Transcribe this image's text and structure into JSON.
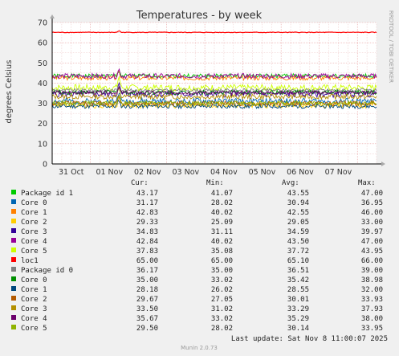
{
  "chart_data": {
    "type": "line",
    "title": "Temperatures - by week",
    "ylabel": "degrees Celsius",
    "ylim": [
      0,
      70
    ],
    "yticks": [
      0,
      10,
      20,
      30,
      40,
      50,
      60,
      70
    ],
    "x_tick_labels": [
      "31 Oct",
      "01 Nov",
      "02 Nov",
      "03 Nov",
      "04 Nov",
      "05 Nov",
      "06 Nov",
      "07 Nov"
    ],
    "x_range_days": [
      0,
      8.5
    ],
    "grid": true,
    "legend_columns": [
      "Cur:",
      "Min:",
      "Avg:",
      "Max:"
    ],
    "series": [
      {
        "name": "Package id 1",
        "color": "#00cc00",
        "cur": "43.17",
        "min": "41.07",
        "avg": "43.55",
        "max": "47.00"
      },
      {
        "name": "Core 0",
        "color": "#0066b3",
        "cur": "31.17",
        "min": "28.02",
        "avg": "30.94",
        "max": "36.95"
      },
      {
        "name": "Core 1",
        "color": "#ff8000",
        "cur": "42.83",
        "min": "40.02",
        "avg": "42.55",
        "max": "46.00"
      },
      {
        "name": "Core 2",
        "color": "#ffcc00",
        "cur": "29.33",
        "min": "25.09",
        "avg": "29.05",
        "max": "33.00"
      },
      {
        "name": "Core 3",
        "color": "#330099",
        "cur": "34.83",
        "min": "31.11",
        "avg": "34.59",
        "max": "39.97"
      },
      {
        "name": "Core 4",
        "color": "#990099",
        "cur": "42.84",
        "min": "40.02",
        "avg": "43.50",
        "max": "47.00"
      },
      {
        "name": "Core 5",
        "color": "#ccff00",
        "cur": "37.83",
        "min": "35.08",
        "avg": "37.72",
        "max": "43.95"
      },
      {
        "name": "loc1",
        "color": "#ff0000",
        "cur": "65.00",
        "min": "65.00",
        "avg": "65.10",
        "max": "66.00"
      },
      {
        "name": "Package id 0",
        "color": "#808080",
        "cur": "36.17",
        "min": "35.00",
        "avg": "36.51",
        "max": "39.00"
      },
      {
        "name": "Core 0",
        "color": "#008f00",
        "cur": "35.00",
        "min": "33.02",
        "avg": "35.42",
        "max": "38.98"
      },
      {
        "name": "Core 1",
        "color": "#00487d",
        "cur": "28.18",
        "min": "26.02",
        "avg": "28.55",
        "max": "32.00"
      },
      {
        "name": "Core 2",
        "color": "#b35a00",
        "cur": "29.67",
        "min": "27.05",
        "avg": "30.01",
        "max": "33.93"
      },
      {
        "name": "Core 3",
        "color": "#b38f00",
        "cur": "33.50",
        "min": "31.02",
        "avg": "33.29",
        "max": "37.93"
      },
      {
        "name": "Core 4",
        "color": "#6b006b",
        "cur": "35.67",
        "min": "33.02",
        "avg": "35.29",
        "max": "38.00"
      },
      {
        "name": "Core 5",
        "color": "#8fb300",
        "cur": "29.50",
        "min": "28.02",
        "avg": "30.14",
        "max": "33.95"
      }
    ],
    "spike_day": 1.75
  },
  "last_update": "Last update: Sat Nov  8 11:00:07 2025",
  "vertical_label": "RRDTOOL / TOBI OETIKER",
  "footer": "Munin 2.0.73"
}
